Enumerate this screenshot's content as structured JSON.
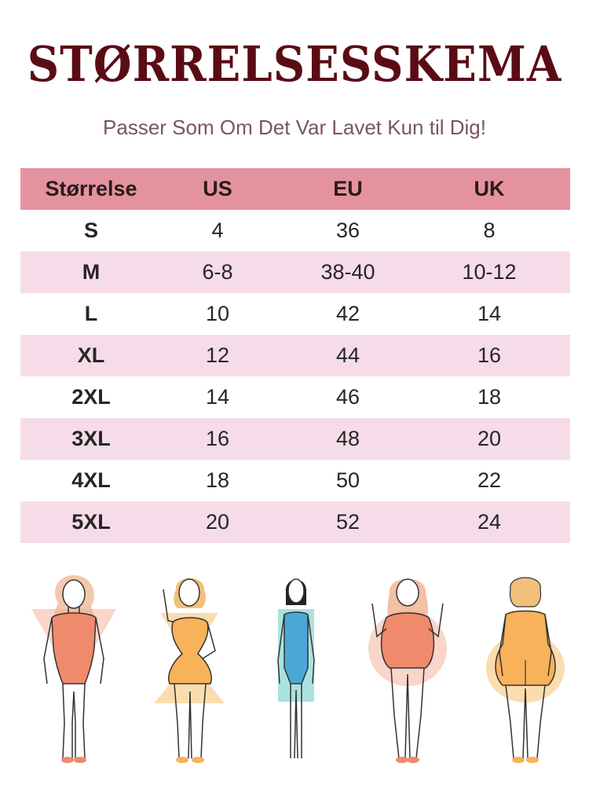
{
  "title": "STØRRELSESSKEMA",
  "subtitle": "Passer Som Om Det Var Lavet Kun til Dig!",
  "table": {
    "headers": [
      "Størrelse",
      "US",
      "EU",
      "UK"
    ],
    "rows": [
      [
        "S",
        "4",
        "36",
        "8"
      ],
      [
        "M",
        "6-8",
        "38-40",
        "10-12"
      ],
      [
        "L",
        "10",
        "42",
        "14"
      ],
      [
        "XL",
        "12",
        "44",
        "16"
      ],
      [
        "2XL",
        "14",
        "46",
        "18"
      ],
      [
        "3XL",
        "16",
        "48",
        "20"
      ],
      [
        "4XL",
        "18",
        "50",
        "22"
      ],
      [
        "5XL",
        "20",
        "52",
        "24"
      ]
    ]
  },
  "colors": {
    "title": "#5a0c14",
    "header_bg": "#e4939e",
    "alt_row_bg": "#f6dce8",
    "swimsuit_coral": "#f08a6c",
    "swimsuit_orange": "#f7b25a",
    "swimsuit_blue": "#4aa7d6"
  },
  "figures": [
    {
      "icon": "inverted-triangle-body-figure-icon"
    },
    {
      "icon": "hourglass-body-figure-icon"
    },
    {
      "icon": "rectangle-body-figure-icon"
    },
    {
      "icon": "apple-body-figure-icon"
    },
    {
      "icon": "pear-body-figure-icon"
    }
  ]
}
